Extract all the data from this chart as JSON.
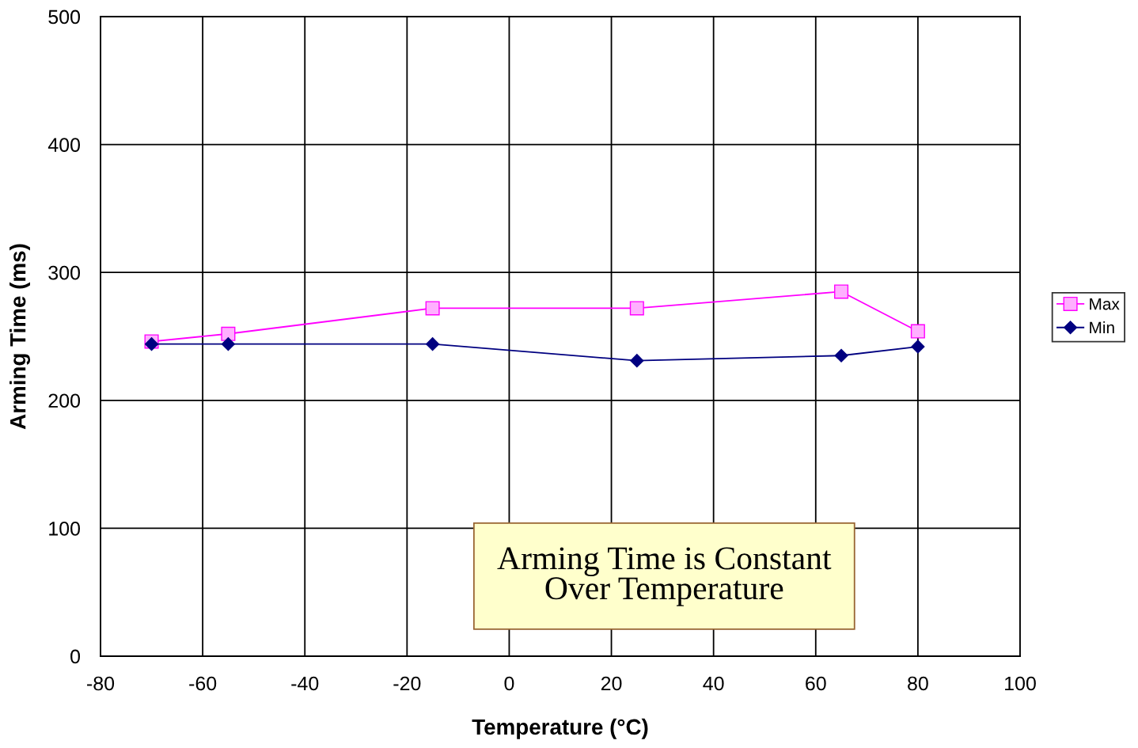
{
  "chart_data": {
    "type": "line",
    "xlabel": "Temperature (°C)",
    "ylabel": "Arming Time (ms)",
    "x": [
      -70,
      -55,
      -15,
      25,
      65,
      80
    ],
    "series": [
      {
        "name": "Max",
        "color": "#ff00ff",
        "marker": "square",
        "values": [
          246,
          252,
          272,
          272,
          285,
          254
        ]
      },
      {
        "name": "Min",
        "color": "#000080",
        "marker": "diamond",
        "values": [
          244,
          244,
          244,
          231,
          235,
          242
        ]
      }
    ],
    "xlim": [
      -80,
      100
    ],
    "xticks": [
      -80,
      -60,
      -40,
      -20,
      0,
      20,
      40,
      60,
      80,
      100
    ],
    "ylim": [
      0,
      500
    ],
    "yticks": [
      0,
      100,
      200,
      300,
      400,
      500
    ],
    "grid": true,
    "legend": "right",
    "line_style": "solid",
    "annotations": [
      "Arming Time is Constant Over Temperature"
    ]
  }
}
